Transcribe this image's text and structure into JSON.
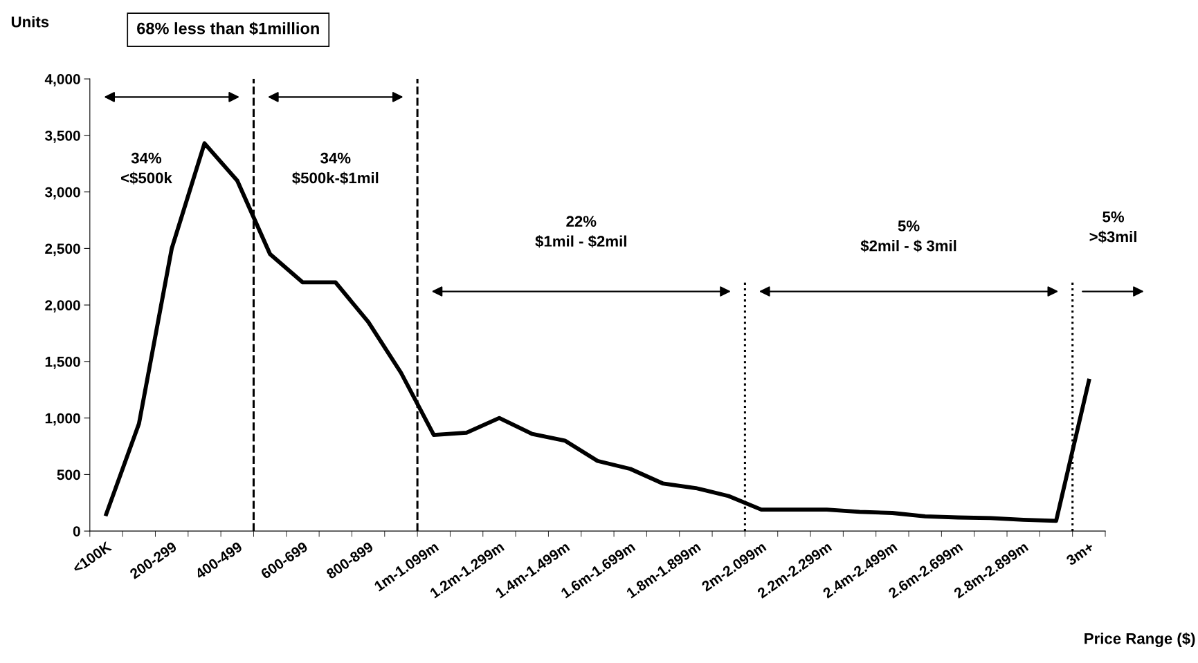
{
  "chart_data": {
    "type": "line",
    "ylabel": "Units",
    "xlabel": "Price Range ($)",
    "annotations": [
      "68% less than $1million",
      "34%\n<$500k",
      "34%\n$500k-$1mil",
      "22%\n$1mil - $2mil",
      "5%\n$2mil - $ 3mil",
      "5%\n>$3mil"
    ],
    "categories": [
      "<100K",
      null,
      "200-299",
      null,
      "400-499",
      null,
      "600-699",
      null,
      "800-899",
      null,
      "1m-1.099m",
      null,
      "1.2m-1.299m",
      null,
      "1.4m-1.499m",
      null,
      "1.6m-1.699m",
      null,
      "1.8m-1.899m",
      null,
      "2m-2.099m",
      null,
      "2.2m-2.299m",
      null,
      "2.4m-2.499m",
      null,
      "2.6m-2.699m",
      null,
      "2.8m-2.899m",
      null,
      "3m+"
    ],
    "series": [
      {
        "color": "#000000",
        "values": [
          150,
          950,
          2500,
          3430,
          3100,
          2450,
          2200,
          2200,
          1850,
          1400,
          850,
          870,
          1000,
          860,
          800,
          620,
          550,
          420,
          380,
          310,
          190,
          190,
          190,
          170,
          160,
          130,
          120,
          115,
          100,
          90,
          1330
        ]
      }
    ],
    "ylim": [
      0,
      4000
    ],
    "yticks": [
      0,
      500,
      {
        "value": 1000,
        "label": "1,000"
      },
      {
        "value": 1500,
        "label": "1,500"
      },
      {
        "value": 2000,
        "label": "2,000"
      },
      {
        "value": 2500,
        "label": "2,500"
      },
      {
        "value": 3000,
        "label": "3,000"
      },
      {
        "value": 3500,
        "label": "3,500"
      },
      {
        "value": 4000,
        "label": "4,000"
      }
    ],
    "grid": false,
    "legend": false,
    "marker": "none",
    "line_style": "solid"
  }
}
